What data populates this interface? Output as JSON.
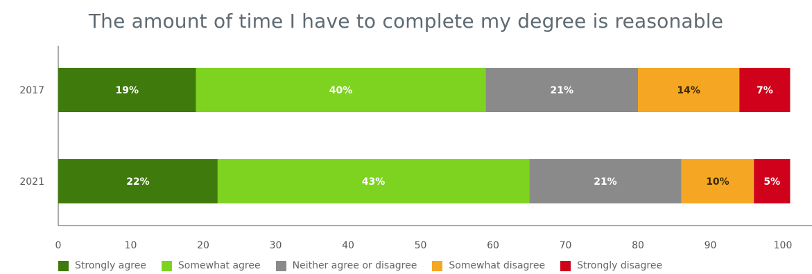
{
  "chart_data": {
    "type": "bar",
    "orientation": "horizontal",
    "stacked": true,
    "title": "The amount of time I have to complete my degree is reasonable",
    "categories": [
      "2017",
      "2021"
    ],
    "series": [
      {
        "name": "Strongly agree",
        "values": [
          19,
          22
        ],
        "labels": [
          "19%",
          "22%"
        ],
        "color": "#3f7a0c"
      },
      {
        "name": "Somewhat agree",
        "values": [
          40,
          43
        ],
        "labels": [
          "40%",
          "43%"
        ],
        "color": "#7ed321"
      },
      {
        "name": "Neither agree or disagree",
        "values": [
          21,
          21
        ],
        "labels": [
          "21%",
          "21%"
        ],
        "color": "#8a8a8a"
      },
      {
        "name": "Somewhat disagree",
        "values": [
          14,
          10
        ],
        "labels": [
          "14%",
          "10%"
        ],
        "color": "#f5a623"
      },
      {
        "name": "Strongly disagree",
        "values": [
          7,
          5
        ],
        "labels": [
          "7%",
          "5%"
        ],
        "color": "#d0021b"
      }
    ],
    "xlim": [
      0,
      100
    ],
    "xticks": [
      "0",
      "10",
      "20",
      "30",
      "40",
      "50",
      "60",
      "70",
      "80",
      "90",
      "100"
    ],
    "grid": false,
    "legend_position": "bottom"
  }
}
